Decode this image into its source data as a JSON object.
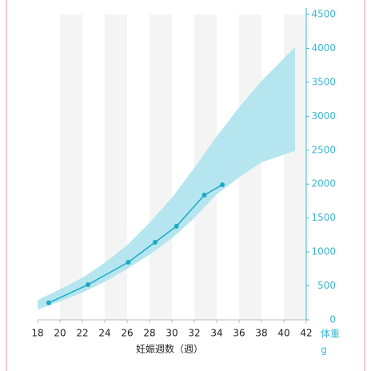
{
  "chart_data": {
    "type": "line",
    "xlabel": "妊娠週数（週）",
    "ylabel": "体重",
    "yunit": "g",
    "xlim": [
      18,
      42
    ],
    "xticks": [
      18,
      20,
      22,
      24,
      26,
      28,
      30,
      32,
      34,
      36,
      38,
      40,
      42
    ],
    "ylim": [
      0,
      4500
    ],
    "yticks": [
      0,
      500,
      1000,
      1500,
      2000,
      2500,
      3000,
      3500,
      4000,
      4500
    ],
    "band": {
      "color": "#b5e6ef",
      "x": [
        18,
        20,
        22,
        24,
        26,
        28,
        30,
        32,
        34,
        36,
        38,
        41
      ],
      "lower": [
        150,
        270,
        400,
        560,
        750,
        960,
        1200,
        1500,
        1850,
        2100,
        2320,
        2490
      ],
      "upper": [
        290,
        450,
        620,
        840,
        1100,
        1430,
        1800,
        2240,
        2700,
        3130,
        3520,
        4020
      ]
    },
    "series": [
      {
        "color": "#1ea8c8",
        "x": [
          19.0,
          22.5,
          26.1,
          28.5,
          30.4,
          32.9,
          34.5
        ],
        "values": [
          250,
          518,
          848,
          1143,
          1378,
          1838,
          1990
        ]
      }
    ]
  }
}
